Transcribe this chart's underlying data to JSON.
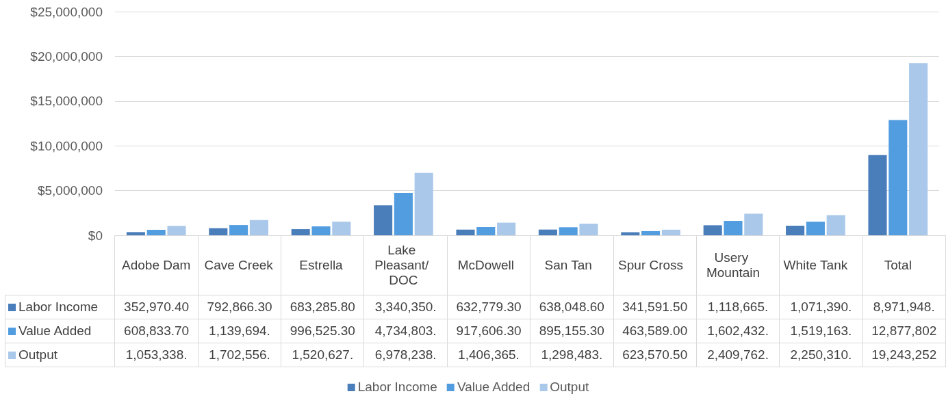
{
  "chart_data": {
    "type": "bar",
    "categories": [
      "Adobe Dam",
      "Cave Creek",
      "Estrella",
      "Lake Pleasant/ DOC",
      "McDowell",
      "San Tan",
      "Spur Cross",
      "Usery Mountain",
      "White Tank",
      "Total"
    ],
    "series": [
      {
        "name": "Labor Income",
        "color": "#4a7ebb",
        "values": [
          352970.4,
          792866.3,
          683285.8,
          3340350,
          632779.3,
          638048.6,
          341591.5,
          1118665,
          1071390,
          8971948
        ],
        "value_labels": [
          "352,970.40",
          "792,866.30",
          "683,285.80",
          "3,340,350.",
          "632,779.30",
          "638,048.60",
          "341,591.50",
          "1,118,665.",
          "1,071,390.",
          "8,971,948."
        ]
      },
      {
        "name": "Value Added",
        "color": "#519de0",
        "values": [
          608833.7,
          1139694,
          996525.3,
          4734803,
          917606.3,
          895155.3,
          463589.0,
          1602432,
          1519163,
          12877802
        ],
        "value_labels": [
          "608,833.70",
          "1,139,694.",
          "996,525.30",
          "4,734,803.",
          "917,606.30",
          "895,155.30",
          "463,589.00",
          "1,602,432.",
          "1,519,163.",
          "12,877,802"
        ]
      },
      {
        "name": "Output",
        "color": "#a9c8ea",
        "values": [
          1053338,
          1702556,
          1520627,
          6978238,
          1406365,
          1298483,
          623570.5,
          2409762,
          2250310,
          19243252
        ],
        "value_labels": [
          "1,053,338.",
          "1,702,556.",
          "1,520,627.",
          "6,978,238.",
          "1,406,365.",
          "1,298,483.",
          "623,570.50",
          "2,409,762.",
          "2,250,310.",
          "19,243,252"
        ]
      }
    ],
    "ylim": [
      0,
      25000000
    ],
    "yticks": [
      {
        "value": 0,
        "label": "$0"
      },
      {
        "value": 5000000,
        "label": "$5,000,000"
      },
      {
        "value": 10000000,
        "label": "$10,000,000"
      },
      {
        "value": 15000000,
        "label": "$15,000,000"
      },
      {
        "value": 20000000,
        "label": "$20,000,000"
      },
      {
        "value": 25000000,
        "label": "$25,000,000"
      }
    ],
    "grid": "y",
    "legend": "bottom"
  }
}
